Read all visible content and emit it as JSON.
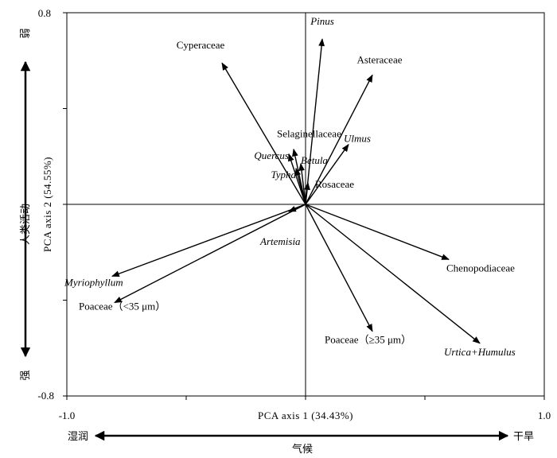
{
  "chart_data": {
    "type": "scatter",
    "xlabel": "PCA axis 1 (34.43%)",
    "ylabel": "PCA axis 2 (54.55%)",
    "xlim": [
      -1.0,
      1.0
    ],
    "ylim": [
      -0.8,
      0.8
    ],
    "x_tick_labels": [
      "-1.0",
      "1.0"
    ],
    "y_tick_labels": [
      "0.8",
      "-0.8"
    ],
    "x_ticks": [
      -1.0,
      -0.5,
      0,
      0.5,
      1.0
    ],
    "y_ticks": [
      -0.8,
      -0.4,
      0,
      0.4,
      0.8
    ],
    "grid": false,
    "vectors": [
      {
        "label": "Cyperaceae",
        "italic": false,
        "x": -0.35,
        "y": 0.59,
        "label_x": -0.44,
        "label_y": 0.65,
        "anchor": "middle"
      },
      {
        "label": "Pinus",
        "italic": true,
        "x": 0.07,
        "y": 0.69,
        "label_x": 0.07,
        "label_y": 0.75,
        "anchor": "middle"
      },
      {
        "label": "Asteraceae",
        "italic": false,
        "x": 0.28,
        "y": 0.54,
        "label_x": 0.31,
        "label_y": 0.59,
        "anchor": "middle"
      },
      {
        "label": "Selaginellaceae",
        "italic": false,
        "x": -0.05,
        "y": 0.23,
        "label_x": -0.12,
        "label_y": 0.28,
        "anchor": "start"
      },
      {
        "label": "Ulmus",
        "italic": true,
        "x": 0.18,
        "y": 0.25,
        "label_x": 0.16,
        "label_y": 0.26,
        "anchor": "start"
      },
      {
        "label": "Quercus",
        "italic": true,
        "x": -0.07,
        "y": 0.21,
        "label_x": -0.07,
        "label_y": 0.19,
        "anchor": "end"
      },
      {
        "label": "Betula",
        "italic": true,
        "x": -0.02,
        "y": 0.17,
        "label_x": -0.02,
        "label_y": 0.17,
        "anchor": "start"
      },
      {
        "label": "Typha",
        "italic": true,
        "x": -0.04,
        "y": 0.15,
        "label_x": -0.04,
        "label_y": 0.11,
        "anchor": "end"
      },
      {
        "label": "Rosaceae",
        "italic": false,
        "x": 0.01,
        "y": 0.09,
        "label_x": 0.04,
        "label_y": 0.07,
        "anchor": "start"
      },
      {
        "label": "Artemisia",
        "italic": true,
        "x": -0.07,
        "y": -0.03,
        "label_x": -0.19,
        "label_y": -0.17,
        "anchor": "start"
      },
      {
        "label": "Myriophyllum",
        "italic": true,
        "x": -0.81,
        "y": -0.3,
        "label_x": -1.01,
        "label_y": -0.34,
        "anchor": "start"
      },
      {
        "label": "Poaceae（<35 μm）",
        "italic": false,
        "x": -0.8,
        "y": -0.41,
        "label_x": -0.95,
        "label_y": -0.44,
        "anchor": "start"
      },
      {
        "label": "Chenopodiaceae",
        "italic": false,
        "x": 0.6,
        "y": -0.23,
        "label_x": 0.59,
        "label_y": -0.28,
        "anchor": "start"
      },
      {
        "label": "Poaceae（≥35 μm）",
        "italic": false,
        "x": 0.28,
        "y": -0.53,
        "label_x": 0.08,
        "label_y": -0.58,
        "anchor": "start"
      },
      {
        "label": "Urtica+Humulus",
        "italic": true,
        "x": 0.73,
        "y": -0.58,
        "label_x": 0.58,
        "label_y": -0.63,
        "anchor": "start"
      }
    ]
  },
  "side_labels": {
    "top": "弱",
    "left": "人类活动",
    "bottom": "强",
    "x_left": "湿润",
    "x_center": "气候",
    "x_right": "干旱"
  }
}
